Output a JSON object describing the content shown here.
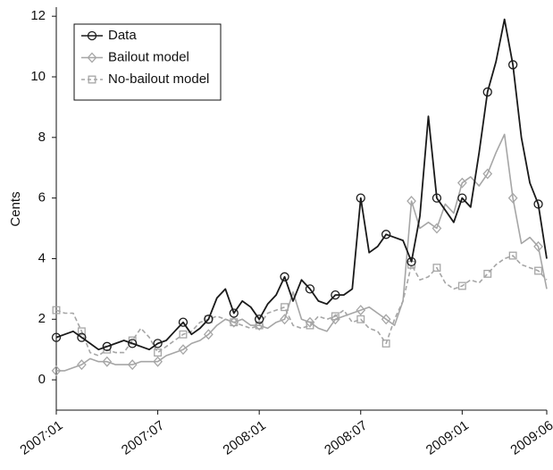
{
  "chart_data": {
    "type": "line",
    "ylabel": "Cents",
    "categories": [
      "2007:01",
      null,
      null,
      null,
      null,
      null,
      null,
      null,
      null,
      null,
      null,
      null,
      "2007:07",
      null,
      null,
      null,
      null,
      null,
      null,
      null,
      null,
      null,
      null,
      null,
      "2008:01",
      null,
      null,
      null,
      null,
      null,
      null,
      null,
      null,
      null,
      null,
      null,
      "2008:07",
      null,
      null,
      null,
      null,
      null,
      null,
      null,
      null,
      null,
      null,
      null,
      "2009:01",
      null,
      null,
      null,
      null,
      null,
      null,
      null,
      null,
      null,
      "2009:06"
    ],
    "series": [
      {
        "name": "Data",
        "color": "#1a1a1a",
        "marker": "circle",
        "linestyle": "solid",
        "values": [
          1.4,
          1.5,
          1.6,
          1.4,
          1.2,
          1.0,
          1.1,
          1.2,
          1.3,
          1.2,
          1.1,
          1.0,
          1.2,
          1.3,
          1.6,
          1.9,
          1.5,
          1.7,
          2.0,
          2.7,
          3.0,
          2.2,
          2.6,
          2.4,
          2.0,
          2.5,
          2.8,
          3.4,
          2.6,
          3.3,
          3.0,
          2.6,
          2.5,
          2.8,
          2.8,
          3.0,
          6.0,
          4.2,
          4.4,
          4.8,
          4.7,
          4.6,
          3.9,
          5.4,
          8.7,
          6.0,
          5.6,
          5.2,
          6.0,
          5.7,
          7.5,
          9.5,
          10.5,
          11.9,
          10.4,
          8.0,
          6.5,
          5.8,
          4.0
        ]
      },
      {
        "name": "Bailout model",
        "color": "#a6a6a6",
        "marker": "diamond",
        "linestyle": "solid",
        "values": [
          0.3,
          0.3,
          0.4,
          0.5,
          0.7,
          0.6,
          0.6,
          0.5,
          0.5,
          0.5,
          0.6,
          0.6,
          0.6,
          0.8,
          0.9,
          1.0,
          1.2,
          1.3,
          1.5,
          1.8,
          2.0,
          1.9,
          2.0,
          1.8,
          1.8,
          1.7,
          1.9,
          2.0,
          2.9,
          2.0,
          1.9,
          1.7,
          1.6,
          2.0,
          2.1,
          2.2,
          2.3,
          2.4,
          2.2,
          2.0,
          1.8,
          2.6,
          5.9,
          5.0,
          5.2,
          5.0,
          5.8,
          5.5,
          6.5,
          6.7,
          6.4,
          6.8,
          7.5,
          8.1,
          6.0,
          4.5,
          4.7,
          4.4,
          3.0
        ]
      },
      {
        "name": "No-bailout model",
        "color": "#a6a6a6",
        "marker": "square",
        "linestyle": "dashed",
        "values": [
          2.3,
          2.2,
          2.2,
          1.6,
          0.9,
          0.8,
          1.0,
          0.9,
          0.9,
          1.3,
          1.7,
          1.4,
          0.9,
          1.1,
          1.3,
          1.5,
          1.6,
          1.9,
          2.0,
          2.1,
          2.0,
          1.9,
          1.8,
          1.7,
          1.8,
          2.2,
          2.3,
          2.4,
          1.8,
          1.7,
          1.8,
          2.1,
          2.0,
          2.1,
          2.3,
          1.9,
          2.0,
          1.7,
          1.6,
          1.2,
          2.0,
          2.6,
          3.8,
          3.3,
          3.4,
          3.7,
          3.2,
          3.0,
          3.1,
          3.3,
          3.2,
          3.5,
          3.8,
          4.0,
          4.1,
          3.8,
          3.7,
          3.6,
          3.3
        ]
      }
    ],
    "ylim": [
      -1,
      12.3
    ],
    "yticks": [
      0,
      2,
      4,
      6,
      8,
      10,
      12
    ],
    "grid": false,
    "legend": "upper left"
  }
}
